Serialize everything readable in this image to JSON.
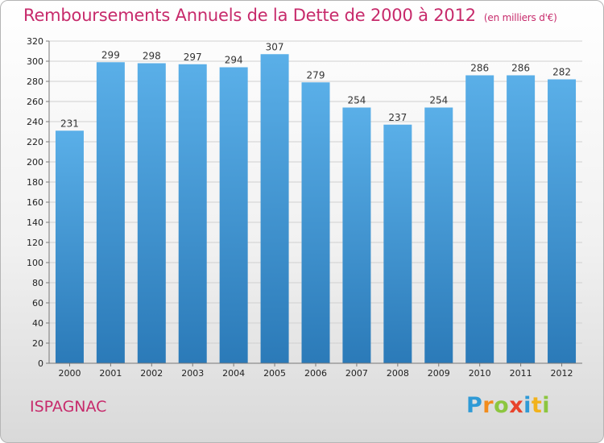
{
  "header": {
    "title": "Remboursements Annuels de la Dette de 2000 à 2012",
    "unit": "(en milliers d'€)"
  },
  "footer": {
    "place": "ISPAGNAC",
    "logo": "Proxiti"
  },
  "colors": {
    "bar_top": "#5aafe8",
    "bar_bottom": "#2b7ab8",
    "title": "#c72a6b",
    "grid": "#d0d0d0"
  },
  "chart_data": {
    "type": "bar",
    "title": "Remboursements Annuels de la Dette de 2000 à 2012",
    "xlabel": "",
    "ylabel": "",
    "categories": [
      "2000",
      "2001",
      "2002",
      "2003",
      "2004",
      "2005",
      "2006",
      "2007",
      "2008",
      "2009",
      "2010",
      "2011",
      "2012"
    ],
    "values": [
      231,
      299,
      298,
      297,
      294,
      307,
      279,
      254,
      237,
      254,
      286,
      286,
      282
    ],
    "ylim": [
      0,
      320
    ],
    "yticks": [
      0,
      20,
      40,
      60,
      80,
      100,
      120,
      140,
      160,
      180,
      200,
      220,
      240,
      260,
      280,
      300,
      320
    ],
    "grid": true
  }
}
